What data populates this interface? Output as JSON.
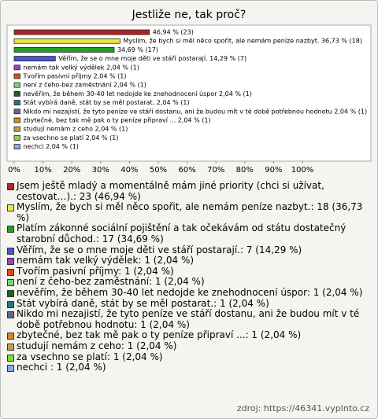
{
  "chart_data": {
    "type": "bar",
    "orientation": "horizontal",
    "title": "Jestliže ne, tak proč?",
    "categories": [
      "Jsem ještě mladý a momentálně mám jiné priority (chci si užívat, cestovat…).: 23 (46,94 %)",
      "Myslím, že bych si měl něco spořit, ale nemám peníze nazbyt.: 18 (36,73 %)",
      "Platím zákonné sociální pojištění a tak očekávám od státu dostatečný starobní důchod.: 17 (34,69 %)",
      "Věřím, že se o mne moje děti ve stáří postarají.: 7 (14,29 %)",
      "nemám tak velký výdělek: 1 (2,04 %)",
      "Tvořím pasivní příjmy: 1 (2,04 %)",
      "není z čeho-bez zaměstnání: 1 (2,04 %)",
      "nevěřím, že během 30-40 let nedojde ke znehodnocení úspor: 1 (2,04 %)",
      "Stát vybírá daně, stát by se měl postarat.: 1 (2,04 %)",
      "Nikdo mi nezajistí, že tyto peníze ve stáří dostanu, ani že budou mít v té době potřebnou hodnotu: 1 (2,04 %)",
      "zbytečné, bez tak mě pak o ty peníze připraví ...: 1 (2,04 %)",
      "studují nemám z ceho: 1 (2,04 %)",
      "za vsechno se platí: 1 (2,04 %)",
      "nechci : 1 (2,04 %)"
    ],
    "values": [
      46.94,
      36.73,
      34.69,
      14.29,
      2.04,
      2.04,
      2.04,
      2.04,
      2.04,
      2.04,
      2.04,
      2.04,
      2.04,
      2.04
    ],
    "value_labels": [
      "46,94 % (23)",
      "Myslím, že bych si měl něco spořit, ale nemám peníze nazbyt. 36,73 % (18)",
      "34,69 % (17)",
      "Věřím, že se o mne moje děti ve stáří postarají. 14,29 % (7)",
      "nemám tak velký výdělek 2,04 % (1)",
      "Tvořím pasivní příjmy 2,04 % (1)",
      "není z čeho-bez zaměstnání 2,04 % (1)",
      "nevěřím, že během 30-40 let nedojde ke znehodnocení úspor 2,04 % (1)",
      "Stát vybírá daně, stát by se měl postarat. 2,04 % (1)",
      "Nikdo mi nezajistí, že tyto peníze ve stáří dostanu, ani že budou mít v té době potřebnou hodnotu 2,04 % (1)",
      "zbytečné, bez tak mě pak o ty peníze připraví ... 2,04 % (1)",
      "studují nemám z ceho 2,04 % (1)",
      "za vsechno se platí 2,04 % (1)",
      "nechci  2,04 % (1)"
    ],
    "colors": [
      "#b22222",
      "#f0e640",
      "#22a022",
      "#4a55d0",
      "#a040c0",
      "#e04a1e",
      "#70d870",
      "#206020",
      "#287878",
      "#606890",
      "#e08020",
      "#c8a040",
      "#78e030",
      "#88aae0"
    ],
    "xlim": [
      0,
      100
    ],
    "xticks": [
      {
        "value": 0,
        "label": "0%"
      },
      {
        "value": 10,
        "label": "10%"
      },
      {
        "value": 20,
        "label": "20%"
      },
      {
        "value": 30,
        "label": "30%"
      },
      {
        "value": 40,
        "label": "40%"
      },
      {
        "value": 50,
        "label": "50%"
      },
      {
        "value": 60,
        "label": "60%"
      },
      {
        "value": 70,
        "label": "70%"
      },
      {
        "value": 80,
        "label": "80%"
      },
      {
        "value": 90,
        "label": "90%"
      },
      {
        "value": 100,
        "label": "100%"
      }
    ],
    "source": "zdroj: https://46341.vyplnto.cz"
  }
}
